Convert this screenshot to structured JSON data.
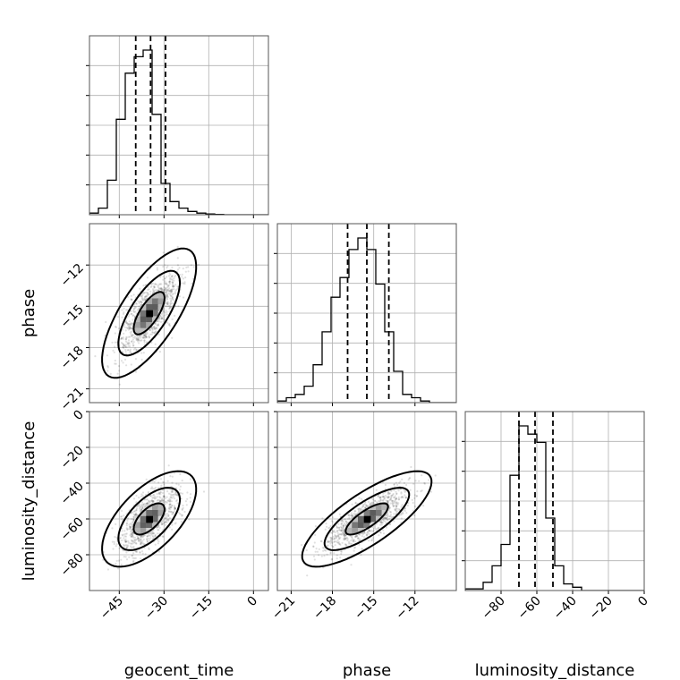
{
  "chart_data": {
    "type": "corner",
    "parameters": [
      "geocent_time",
      "phase",
      "luminosity_distance"
    ],
    "axis_labels": {
      "geocent_time": "geocent_time",
      "phase": "phase",
      "luminosity_distance": "luminosity_distance"
    },
    "ranges": {
      "geocent_time": [
        -55,
        5
      ],
      "phase": [
        -22,
        -9
      ],
      "luminosity_distance": [
        -100,
        0
      ]
    },
    "ticks": {
      "geocent_time": {
        "values": [
          -45,
          -30,
          -15,
          0
        ],
        "labels": [
          "−45",
          "−30",
          "−15",
          "0"
        ]
      },
      "phase": {
        "values": [
          -21,
          -18,
          -15,
          -12
        ],
        "labels": [
          "−21",
          "−18",
          "−15",
          "−12"
        ]
      },
      "luminosity_distance": {
        "values": [
          -80,
          -60,
          -40,
          -20,
          0
        ],
        "labels": [
          "−80",
          "−60",
          "−40",
          "−20",
          "0"
        ]
      }
    },
    "marginals": {
      "geocent_time": {
        "bin_edges": [
          -55,
          -52,
          -49,
          -46,
          -43,
          -40,
          -37,
          -34,
          -31,
          -28,
          -25,
          -22,
          -19,
          -16,
          -13,
          -10,
          -7,
          -4,
          -1,
          2,
          5
        ],
        "counts": [
          0.01,
          0.04,
          0.21,
          0.58,
          0.86,
          0.96,
          1.0,
          0.61,
          0.19,
          0.08,
          0.04,
          0.02,
          0.01,
          0.005,
          0.002,
          0,
          0,
          0,
          0,
          0
        ],
        "quantiles": [
          -39.5,
          -34.5,
          -29.5
        ]
      },
      "phase": {
        "bin_edges": [
          -22,
          -21.35,
          -20.7,
          -20.05,
          -19.4,
          -18.75,
          -18.1,
          -17.45,
          -16.8,
          -16.15,
          -15.5,
          -14.85,
          -14.2,
          -13.55,
          -12.9,
          -12.25,
          -11.6,
          -10.95,
          -10.3,
          -9.65,
          -9
        ],
        "counts": [
          0.01,
          0.03,
          0.05,
          0.1,
          0.23,
          0.43,
          0.64,
          0.76,
          0.93,
          1.0,
          0.93,
          0.72,
          0.43,
          0.19,
          0.05,
          0.03,
          0.01,
          0,
          0,
          0
        ],
        "quantiles": [
          -16.9,
          -15.5,
          -13.9
        ]
      },
      "luminosity_distance": {
        "bin_edges": [
          -100,
          -95,
          -90,
          -85,
          -80,
          -75,
          -70,
          -65,
          -60,
          -55,
          -50,
          -45,
          -40,
          -35,
          -30,
          -25,
          -20,
          -15,
          -10,
          -5,
          0
        ],
        "counts": [
          0.01,
          0.01,
          0.05,
          0.15,
          0.28,
          0.7,
          1.0,
          0.95,
          0.9,
          0.44,
          0.15,
          0.04,
          0.02,
          0,
          0,
          0,
          0,
          0,
          0,
          0
        ],
        "quantiles": [
          -70.0,
          -61.0,
          -51.0
        ]
      }
    },
    "joint": [
      {
        "x": "geocent_time",
        "y": "phase",
        "mean": [
          -35,
          -15.5
        ],
        "sd": [
          5.2,
          1.55
        ],
        "rho": 0.72
      },
      {
        "x": "geocent_time",
        "y": "luminosity_distance",
        "mean": [
          -35,
          -60
        ],
        "sd": [
          5.2,
          8.8
        ],
        "rho": 0.62
      },
      {
        "x": "phase",
        "y": "luminosity_distance",
        "mean": [
          -15.5,
          -60
        ],
        "sd": [
          1.55,
          8.8
        ],
        "rho": 0.78
      }
    ],
    "contour_levels": [
      0.39,
      0.86,
      0.99
    ],
    "grid": true
  }
}
